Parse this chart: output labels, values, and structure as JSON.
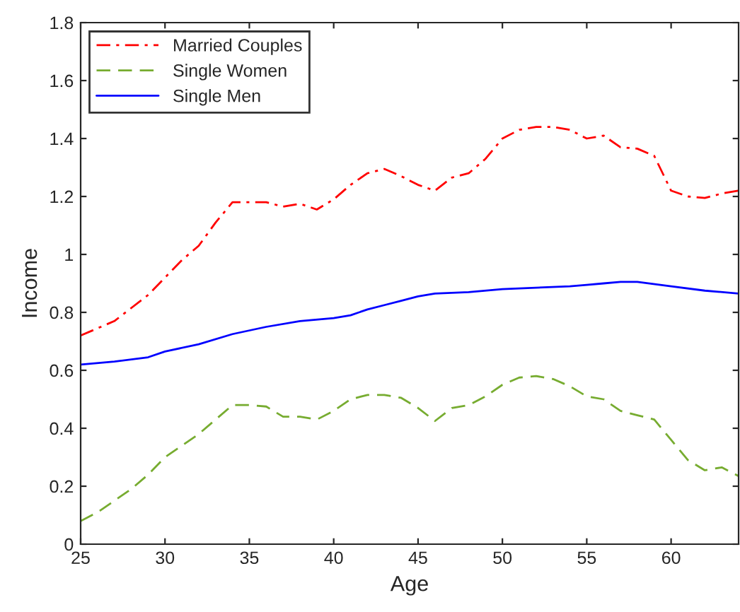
{
  "chart_data": {
    "type": "line",
    "xlabel": "Age",
    "ylabel": "Income",
    "xlim": [
      25,
      64
    ],
    "xticks": [
      25,
      30,
      35,
      40,
      45,
      50,
      55,
      60
    ],
    "ylim": [
      0,
      1.8
    ],
    "yticks": [
      0,
      0.2,
      0.4,
      0.6,
      0.8,
      1,
      1.2,
      1.4,
      1.6,
      1.8
    ],
    "grid": false,
    "legend": "top left",
    "marker": "none",
    "series": [
      {
        "name": "Married Couples",
        "color": "#ff0000",
        "line_style": "dashdot",
        "x": [
          25,
          27,
          29,
          31,
          32,
          33,
          34,
          36,
          37,
          38,
          39,
          40,
          41,
          42,
          43,
          44,
          45,
          46,
          47,
          48,
          49,
          50,
          51,
          52,
          53,
          54,
          55,
          56,
          57,
          58,
          59,
          60,
          61,
          62,
          63,
          64
        ],
        "values": [
          0.72,
          0.77,
          0.86,
          0.98,
          1.03,
          1.11,
          1.18,
          1.18,
          1.165,
          1.175,
          1.155,
          1.19,
          1.24,
          1.28,
          1.295,
          1.27,
          1.24,
          1.22,
          1.265,
          1.28,
          1.33,
          1.4,
          1.43,
          1.44,
          1.44,
          1.43,
          1.4,
          1.41,
          1.37,
          1.365,
          1.34,
          1.22,
          1.2,
          1.195,
          1.21,
          1.22
        ]
      },
      {
        "name": "Single Women",
        "color": "#77ac30",
        "line_style": "dashed",
        "x": [
          25,
          26,
          27,
          28,
          29,
          30,
          31,
          32,
          33,
          34,
          35,
          36,
          37,
          38,
          39,
          40,
          41,
          42,
          43,
          44,
          45,
          46,
          47,
          48,
          49,
          50,
          51,
          52,
          53,
          54,
          55,
          56,
          57,
          58,
          59,
          60,
          61,
          62,
          63,
          64
        ],
        "values": [
          0.08,
          0.11,
          0.15,
          0.19,
          0.24,
          0.3,
          0.34,
          0.38,
          0.43,
          0.48,
          0.48,
          0.475,
          0.44,
          0.44,
          0.43,
          0.46,
          0.5,
          0.515,
          0.515,
          0.505,
          0.47,
          0.425,
          0.47,
          0.48,
          0.51,
          0.55,
          0.575,
          0.58,
          0.57,
          0.545,
          0.51,
          0.5,
          0.46,
          0.445,
          0.43,
          0.36,
          0.29,
          0.255,
          0.265,
          0.235
        ]
      },
      {
        "name": "Single Men",
        "color": "#0000ff",
        "line_style": "solid",
        "x": [
          25,
          27,
          29,
          30,
          32,
          34,
          36,
          38,
          40,
          41,
          42,
          43,
          44,
          45,
          46,
          48,
          50,
          52,
          54,
          55,
          56,
          57,
          58,
          60,
          62,
          64
        ],
        "values": [
          0.62,
          0.63,
          0.645,
          0.665,
          0.69,
          0.725,
          0.75,
          0.77,
          0.78,
          0.79,
          0.81,
          0.825,
          0.84,
          0.855,
          0.865,
          0.87,
          0.88,
          0.885,
          0.89,
          0.895,
          0.9,
          0.905,
          0.905,
          0.89,
          0.875,
          0.865
        ]
      }
    ]
  }
}
